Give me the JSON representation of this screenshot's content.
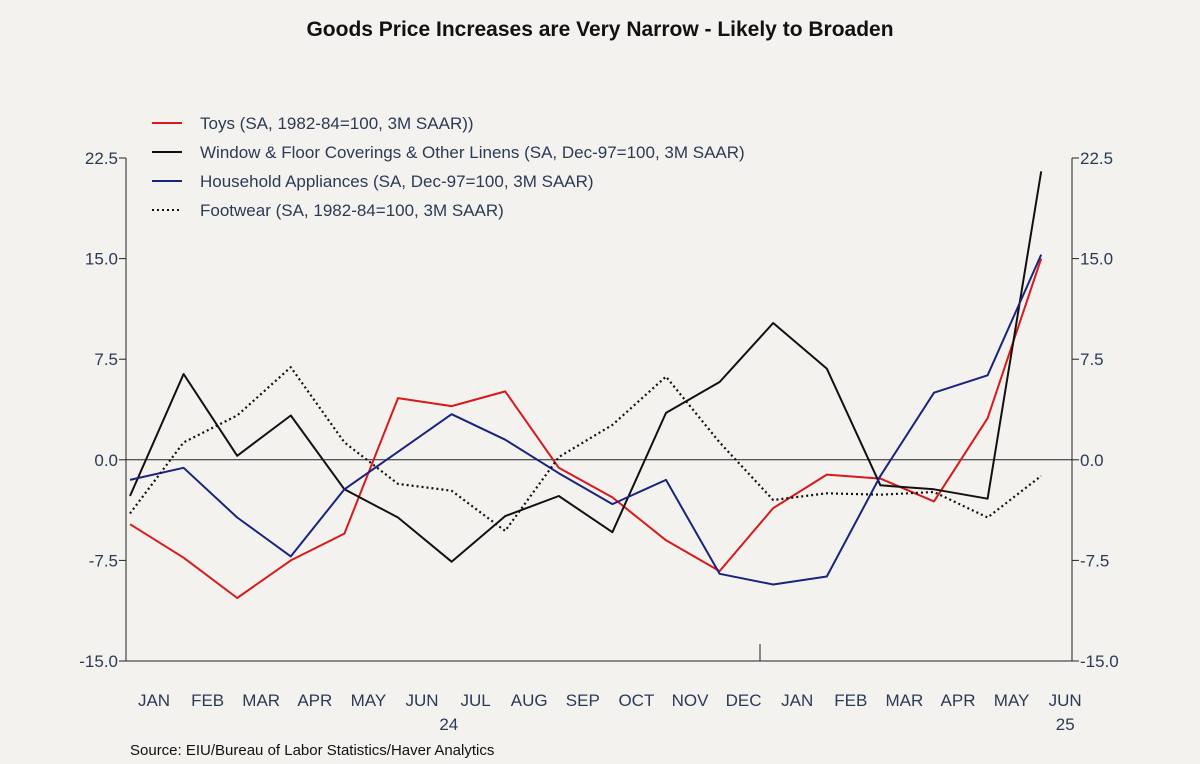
{
  "chart_data": {
    "type": "line",
    "title": "Goods Price Increases are Very Narrow - Likely to Broaden",
    "source": "Source:  EIU/Bureau of Labor Statistics/Haver Analytics",
    "categories": [
      "JAN",
      "FEB",
      "MAR",
      "APR",
      "MAY",
      "JUN",
      "JUL",
      "AUG",
      "SEP",
      "OCT",
      "NOV",
      "DEC",
      "JAN",
      "FEB",
      "MAR",
      "APR",
      "MAY",
      "JUN"
    ],
    "year_labels": [
      {
        "label": "24",
        "index": 5.5
      },
      {
        "label": "25",
        "index": 17
      }
    ],
    "ylim": [
      -15,
      22.5
    ],
    "yticks": [
      22.5,
      15.0,
      7.5,
      0.0,
      -7.5,
      -15.0
    ],
    "ytick_labels": [
      "22.5",
      "15.0",
      "7.5",
      "0.0",
      "-7.5",
      "-15.0"
    ],
    "grid": false,
    "zero_line": true,
    "legend_position": "top-left",
    "series": [
      {
        "name": "Toys (SA, 1982-84=100, 3M SAAR))",
        "color": "#d7191c",
        "dash": "solid",
        "values": [
          -4.8,
          -7.3,
          -10.3,
          -7.5,
          -5.5,
          4.6,
          4.0,
          5.1,
          -0.6,
          -2.8,
          -6.0,
          -8.3,
          -3.6,
          -1.1,
          -1.4,
          -3.1,
          3.1,
          15.0
        ]
      },
      {
        "name": "Window & Floor Coverings & Other Linens (SA, Dec-97=100, 3M SAAR)",
        "color": "#111111",
        "dash": "solid",
        "values": [
          -2.7,
          6.4,
          0.3,
          3.3,
          -2.2,
          -4.3,
          -7.6,
          -4.2,
          -2.7,
          -5.4,
          3.5,
          5.8,
          10.2,
          6.8,
          -1.9,
          -2.2,
          -2.9,
          21.5
        ]
      },
      {
        "name": "Household Appliances (SA, Dec-97=100, 3M SAAR)",
        "color": "#1a237e",
        "dash": "solid",
        "values": [
          -1.5,
          -0.6,
          -4.3,
          -7.2,
          -2.2,
          0.6,
          3.4,
          1.5,
          -1.0,
          -3.3,
          -1.5,
          -8.5,
          -9.3,
          -8.7,
          -1.2,
          5.0,
          6.3,
          15.3
        ]
      },
      {
        "name": "Footwear (SA, 1982-84=100, 3M SAAR)",
        "color": "#111111",
        "dash": "dotted",
        "values": [
          -4.0,
          1.3,
          3.3,
          6.9,
          1.3,
          -1.8,
          -2.3,
          -5.3,
          0.2,
          2.6,
          6.2,
          1.3,
          -3.0,
          -2.5,
          -2.6,
          -2.4,
          -4.3,
          -1.2
        ]
      }
    ]
  }
}
